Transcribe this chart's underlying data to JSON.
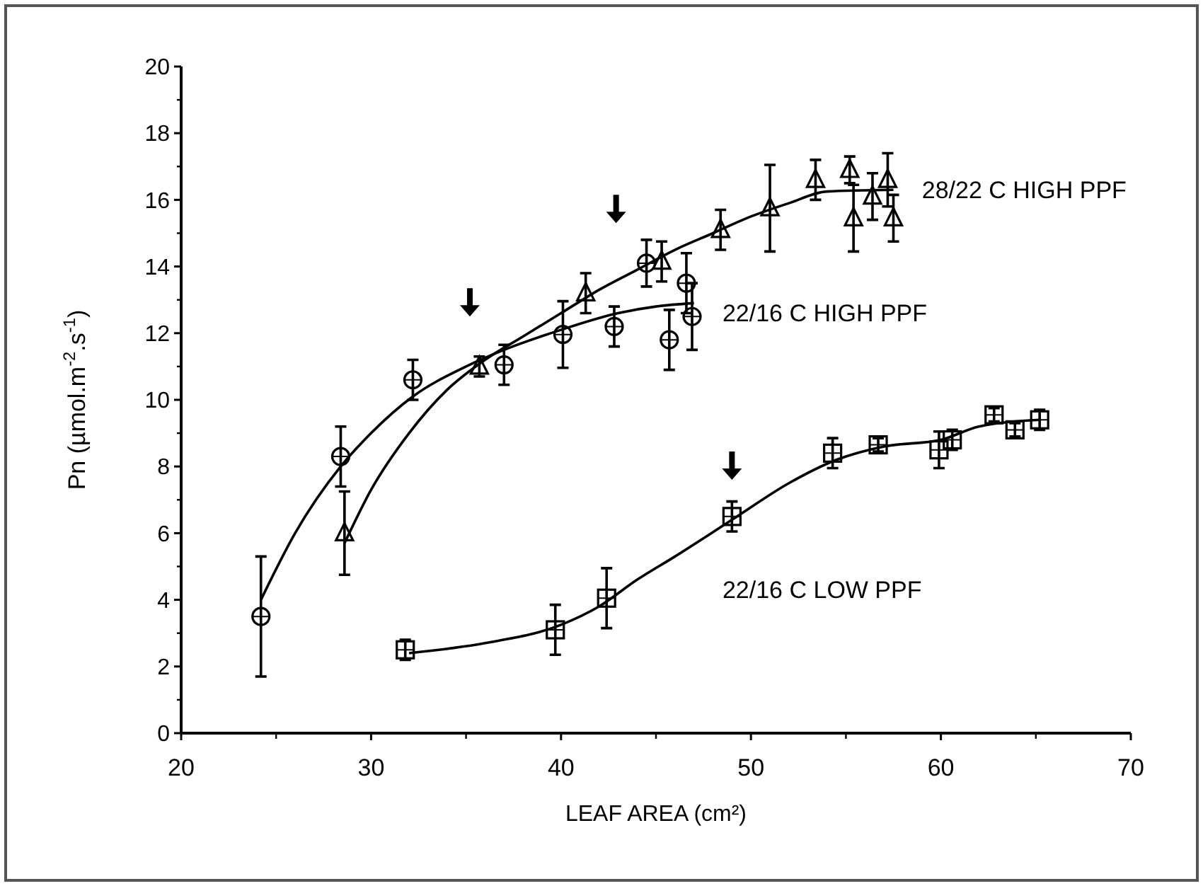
{
  "chart_data": {
    "type": "scatter",
    "xlabel": "LEAF AREA (cm²)",
    "ylabel": "Pn (µmol.m$^{-2}$.s$^{-1}$)",
    "xlim": [
      20,
      70
    ],
    "ylim": [
      0,
      20
    ],
    "xticks": [
      20,
      30,
      40,
      50,
      60,
      70
    ],
    "yticks": [
      0,
      2,
      4,
      6,
      8,
      10,
      12,
      14,
      16,
      18,
      20
    ],
    "grid": false,
    "series": [
      {
        "name": "28/22 C HIGH PPF",
        "color": "#000000",
        "marker": "triangle",
        "x": [
          28.6,
          35.7,
          41.3,
          45.3,
          48.4,
          51.0,
          53.4,
          55.2,
          55.4,
          56.4,
          57.2,
          57.5
        ],
        "values": [
          6.0,
          11.0,
          13.2,
          14.15,
          15.1,
          15.75,
          16.6,
          16.9,
          15.45,
          16.1,
          16.6,
          15.45
        ],
        "errors": [
          1.25,
          0.3,
          0.6,
          0.6,
          0.6,
          1.3,
          0.6,
          0.4,
          1.0,
          0.7,
          0.8,
          0.7
        ]
      },
      {
        "name": "22/16 C HIGH PPF",
        "color": "#000000",
        "marker": "circle",
        "x": [
          24.2,
          28.4,
          32.2,
          37.0,
          40.1,
          42.8,
          44.5,
          45.7,
          46.6,
          46.9
        ],
        "values": [
          3.5,
          8.3,
          10.6,
          11.05,
          11.96,
          12.2,
          14.1,
          11.8,
          13.5,
          12.5
        ],
        "errors": [
          1.8,
          0.9,
          0.6,
          0.6,
          1.0,
          0.6,
          0.7,
          0.9,
          0.9,
          1.0
        ]
      },
      {
        "name": "22/16 C LOW PPF",
        "color": "#000000",
        "marker": "square",
        "x": [
          31.8,
          39.7,
          42.4,
          49.0,
          54.3,
          56.7,
          59.9,
          60.6,
          62.8,
          63.9,
          65.2
        ],
        "values": [
          2.5,
          3.1,
          4.05,
          6.5,
          8.4,
          8.65,
          8.5,
          8.8,
          9.55,
          9.1,
          9.4
        ],
        "errors": [
          0.3,
          0.75,
          0.9,
          0.45,
          0.45,
          0.2,
          0.55,
          0.3,
          0.2,
          0.2,
          0.3
        ]
      },
      {
        "type": "line",
        "color": "#000000",
        "x": [
          28.6,
          30,
          32,
          34,
          36,
          38,
          40,
          42,
          44,
          46,
          48,
          50,
          52,
          54,
          57.5
        ],
        "values": [
          5.7,
          7.3,
          9.0,
          10.3,
          11.2,
          11.9,
          12.6,
          13.3,
          13.9,
          14.5,
          15.0,
          15.5,
          15.9,
          16.25,
          16.3
        ]
      },
      {
        "type": "line",
        "color": "#000000",
        "x": [
          24.2,
          26,
          28.4,
          30,
          32.2,
          35,
          37,
          40,
          43,
          45,
          47
        ],
        "values": [
          4.0,
          6.0,
          8.0,
          9.0,
          10.1,
          11.0,
          11.5,
          12.1,
          12.6,
          12.8,
          12.9
        ]
      },
      {
        "type": "line",
        "color": "#000000",
        "x": [
          32,
          36,
          40,
          42,
          44,
          46,
          49,
          52,
          54.5,
          57,
          60,
          62,
          65.2
        ],
        "values": [
          2.4,
          2.7,
          3.25,
          3.8,
          4.6,
          5.3,
          6.4,
          7.5,
          8.2,
          8.6,
          8.8,
          9.2,
          9.4
        ]
      }
    ]
  }
}
